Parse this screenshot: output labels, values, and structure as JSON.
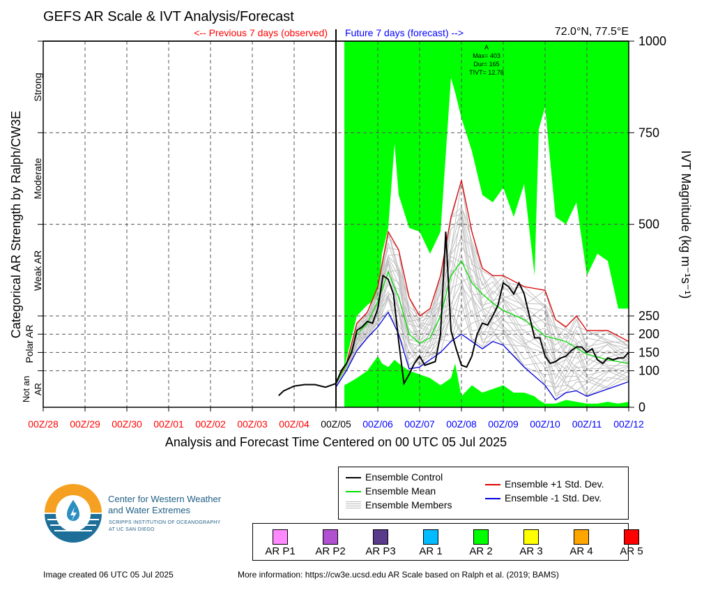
{
  "title": "GEFS AR Scale & IVT Analysis/Forecast",
  "location": "72.0°N, 77.5°E",
  "previous_label": "<-- Previous 7 days (observed)",
  "future_label": "Future 7 days (forecast) -->",
  "xlabel": "Analysis and Forecast Time Centered on 00 UTC 05 Jul 2025",
  "ylabel_left": "Categorical AR Strength by Ralph/CW3E",
  "ylabel_right": "IVT Magnitude (kg m⁻¹s⁻¹)",
  "category_labels": [
    "Strong",
    "Moderate",
    "Weak AR",
    "Polar AR",
    "Not an",
    "AR"
  ],
  "annotation": [
    "A",
    "Max= 403",
    "Dur= 165",
    "TIVT= 12.78"
  ],
  "colors": {
    "observed": "#ff0000",
    "forecast": "#0000ff",
    "ar2_fill": "#00ff00",
    "control": "#000000",
    "mean": "#00dd00",
    "members": "#c0c0c0",
    "plus_std": "#dd0000",
    "minus_std": "#0000dd"
  },
  "legend": {
    "control": "Ensemble Control",
    "mean": "Ensemble Mean",
    "members": "Ensemble Members",
    "plus": "Ensemble +1 Std. Dev.",
    "minus": "Ensemble -1 Std. Dev."
  },
  "ar_scale": [
    {
      "label": "AR P1",
      "color": "#ff88ff"
    },
    {
      "label": "AR P2",
      "color": "#b050d0"
    },
    {
      "label": "AR P3",
      "color": "#5a3a8a"
    },
    {
      "label": "AR 1",
      "color": "#00bbff"
    },
    {
      "label": "AR 2",
      "color": "#00ff00"
    },
    {
      "label": "AR 3",
      "color": "#ffff00"
    },
    {
      "label": "AR 4",
      "color": "#ffa500"
    },
    {
      "label": "AR 5",
      "color": "#ff0000"
    }
  ],
  "logo": {
    "line1": "Center for Western Weather",
    "line2": "and Water Extremes",
    "line3": "SCRIPPS INSTITUTION OF OCEANOGRAPHY",
    "line4": "AT UC SAN DIEGO"
  },
  "footer": {
    "created": "Image created 06 UTC 05 Jul 2025",
    "more": "More information: https://cw3e.ucsd.edu AR Scale based on Ralph et al. (2019; BAMS)"
  },
  "chart_data": {
    "type": "line",
    "x_tick_labels": [
      "00Z/28",
      "00Z/29",
      "00Z/30",
      "00Z/01",
      "00Z/02",
      "00Z/03",
      "00Z/04",
      "00Z/05",
      "00Z/06",
      "00Z/07",
      "00Z/08",
      "00Z/09",
      "00Z/10",
      "00Z/11",
      "00Z/12"
    ],
    "x_tick_days": [
      -7,
      -6,
      -5,
      -4,
      -3,
      -2,
      -1,
      0,
      1,
      2,
      3,
      4,
      5,
      6,
      7
    ],
    "xlim": [
      -7,
      7
    ],
    "y_ticks": [
      0,
      100,
      150,
      200,
      250,
      500,
      750,
      1000
    ],
    "ylim": [
      0,
      1000
    ],
    "ar2_window_days": [
      0.2,
      7
    ],
    "series": [
      {
        "name": "Ensemble Control",
        "x": [
          -1.37,
          -1.25,
          -1,
          -0.75,
          -0.5,
          -0.25,
          0,
          0.125,
          0.25,
          0.375,
          0.5,
          0.625,
          0.75,
          0.875,
          1,
          1.125,
          1.25,
          1.375,
          1.5,
          1.625,
          1.75,
          1.875,
          2,
          2.125,
          2.25,
          2.375,
          2.5,
          2.625,
          2.75,
          2.875,
          3,
          3.125,
          3.25,
          3.375,
          3.5,
          3.625,
          3.75,
          3.875,
          4,
          4.125,
          4.25,
          4.375,
          4.5,
          4.625,
          4.75,
          4.875,
          5,
          5.125,
          5.25,
          5.375,
          5.5,
          5.625,
          5.75,
          5.875,
          6,
          6.125,
          6.25,
          6.375,
          6.5,
          6.625,
          6.75,
          6.875,
          7
        ],
        "y": [
          32,
          45,
          58,
          62,
          62,
          55,
          65,
          100,
          120,
          150,
          210,
          220,
          235,
          230,
          270,
          360,
          350,
          310,
          180,
          65,
          90,
          120,
          140,
          115,
          120,
          125,
          200,
          480,
          210,
          160,
          115,
          110,
          140,
          200,
          230,
          225,
          250,
          280,
          340,
          330,
          310,
          340,
          310,
          250,
          190,
          190,
          140,
          120,
          125,
          135,
          140,
          155,
          165,
          165,
          150,
          160,
          130,
          120,
          135,
          130,
          135,
          135,
          150
        ]
      },
      {
        "name": "Ensemble Mean",
        "x": [
          0,
          0.25,
          0.5,
          0.75,
          1,
          1.25,
          1.5,
          1.75,
          2,
          2.25,
          2.5,
          2.75,
          3,
          3.25,
          3.5,
          3.75,
          4,
          4.5,
          5,
          5.5,
          6,
          6.5,
          7
        ],
        "y": [
          65,
          115,
          200,
          230,
          290,
          370,
          300,
          200,
          175,
          190,
          250,
          360,
          400,
          340,
          310,
          285,
          265,
          240,
          195,
          180,
          145,
          130,
          120
        ]
      },
      {
        "name": "Ensemble +1 Std. Dev.",
        "x": [
          0,
          0.25,
          0.5,
          0.75,
          1,
          1.25,
          1.5,
          1.75,
          2,
          2.25,
          2.5,
          2.75,
          3,
          3.25,
          3.5,
          3.75,
          4,
          4.5,
          5,
          5.25,
          5.5,
          5.75,
          6,
          6.5,
          7
        ],
        "y": [
          70,
          120,
          230,
          260,
          330,
          480,
          430,
          300,
          250,
          270,
          360,
          520,
          620,
          480,
          380,
          360,
          360,
          330,
          320,
          240,
          220,
          250,
          210,
          210,
          180
        ]
      },
      {
        "name": "Ensemble -1 Std. Dev.",
        "x": [
          0,
          0.25,
          0.5,
          0.75,
          1,
          1.25,
          1.5,
          1.75,
          2,
          2.25,
          2.5,
          2.75,
          3,
          3.25,
          3.5,
          3.75,
          4,
          4.5,
          5,
          5.25,
          5.5,
          5.75,
          6,
          6.5,
          7
        ],
        "y": [
          55,
          100,
          155,
          190,
          220,
          260,
          200,
          105,
          110,
          130,
          150,
          180,
          200,
          180,
          160,
          180,
          170,
          110,
          60,
          20,
          40,
          45,
          30,
          50,
          70
        ]
      }
    ],
    "members_envelope": {
      "x": [
        0.2,
        0.5,
        0.75,
        1,
        1.1,
        1.25,
        1.4,
        1.5,
        1.75,
        2,
        2.25,
        2.5,
        2.75,
        2.85,
        3,
        3.25,
        3.5,
        3.75,
        4,
        4.25,
        4.5,
        4.75,
        4.85,
        5,
        5.25,
        5.5,
        5.75,
        6,
        6.25,
        6.5,
        6.75,
        7
      ],
      "upper": [
        110,
        250,
        280,
        300,
        420,
        490,
        720,
        580,
        490,
        480,
        420,
        480,
        900,
        860,
        790,
        700,
        580,
        560,
        600,
        520,
        610,
        360,
        760,
        820,
        520,
        500,
        560,
        360,
        420,
        400,
        270,
        270
      ],
      "lower": [
        60,
        80,
        100,
        140,
        120,
        110,
        130,
        120,
        100,
        90,
        80,
        60,
        80,
        120,
        30,
        60,
        40,
        50,
        60,
        40,
        40,
        30,
        20,
        10,
        10,
        20,
        15,
        10,
        10,
        15,
        10,
        15
      ]
    }
  }
}
